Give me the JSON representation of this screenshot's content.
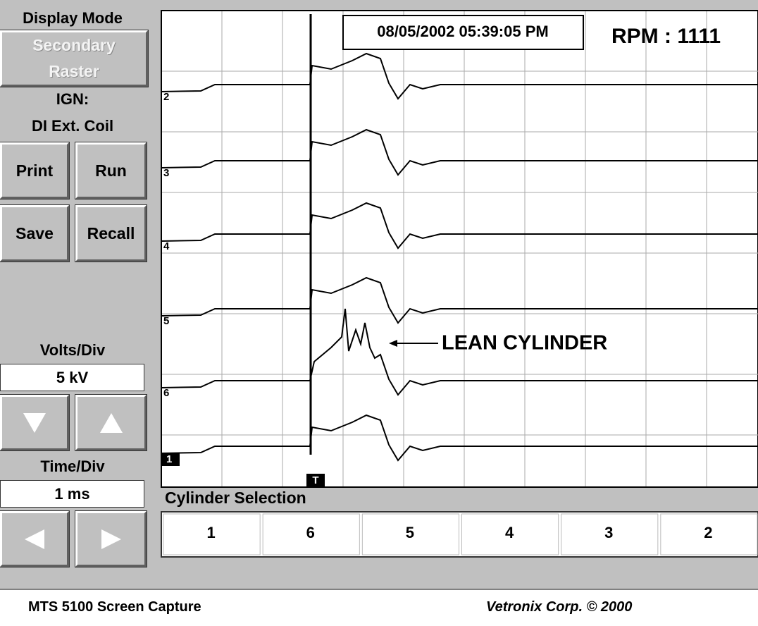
{
  "display_mode": {
    "label": "Display Mode",
    "button": "Secondary Raster"
  },
  "ignition": {
    "label": "IGN:",
    "value": "DI Ext. Coil"
  },
  "buttons": [
    "Print",
    "Run",
    "Save",
    "Recall"
  ],
  "volts_div": {
    "label": "Volts/Div",
    "value": "5 kV"
  },
  "time_div": {
    "label": "Time/Div",
    "value": "1 ms"
  },
  "scope": {
    "timestamp": "08/05/2002 05:39:05 PM",
    "rpm": "RPM : 1111",
    "annotation": "LEAN CYLINDER",
    "trace_labels": [
      "2",
      "3",
      "4",
      "5",
      "6",
      "1"
    ],
    "trigger_label": "T"
  },
  "cylinder_selection": {
    "label": "Cylinder Selection",
    "cylinders": [
      "1",
      "6",
      "5",
      "4",
      "3",
      "2"
    ]
  },
  "footer": {
    "caption": "MTS 5100 Screen Capture",
    "copyright": "Vetronix Corp. © 2000"
  }
}
